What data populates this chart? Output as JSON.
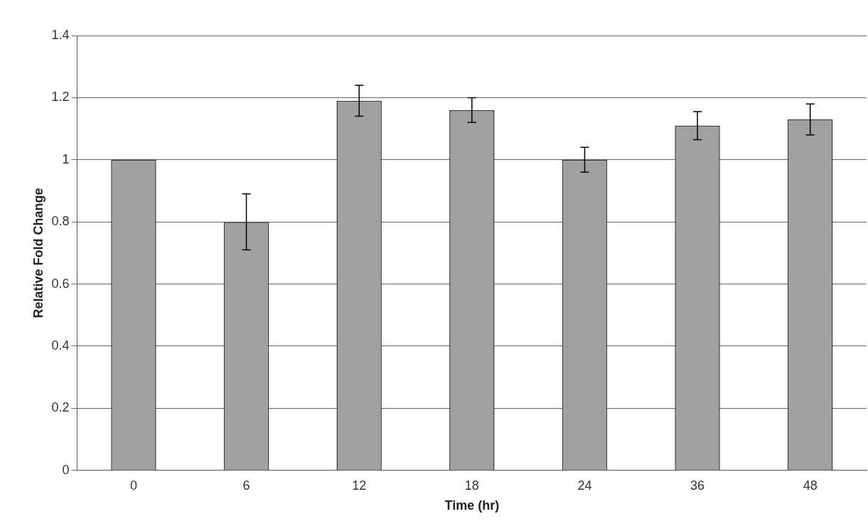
{
  "chart_data": {
    "type": "bar",
    "xlabel": "Time (hr)",
    "ylabel": "Relative Fold Change",
    "categories": [
      "0",
      "6",
      "12",
      "18",
      "24",
      "36",
      "48"
    ],
    "values": [
      1,
      0.8,
      1.19,
      1.16,
      1,
      1.11,
      1.13
    ],
    "errors": [
      null,
      0.09,
      0.05,
      0.04,
      0.04,
      0.045,
      0.05
    ],
    "color": "#a0a0a0",
    "ylim": [
      0,
      1.4
    ],
    "yticks": [
      0,
      0.2,
      0.4,
      0.6,
      0.8,
      1,
      1.2,
      1.4
    ],
    "grid": "y"
  }
}
